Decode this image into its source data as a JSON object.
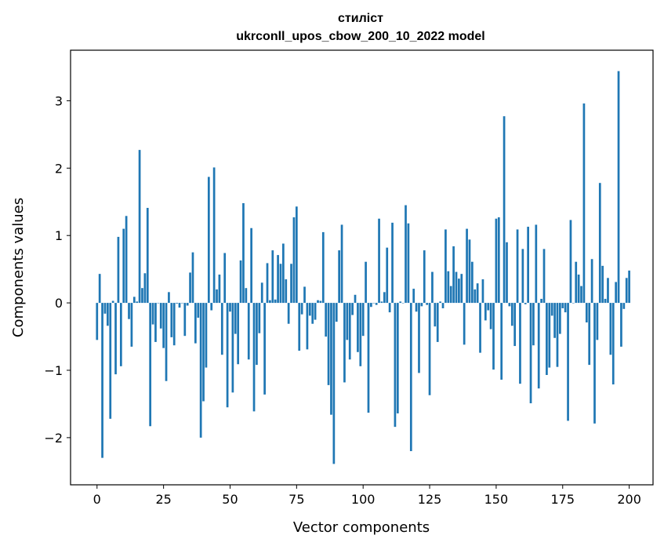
{
  "chart_data": {
    "type": "bar",
    "title_line1": "стиліст",
    "title_line2": "ukrconll_upos_cbow_200_10_2022 model",
    "xlabel": "Vector components",
    "ylabel": "Components values",
    "xlim": [
      -9.95,
      208.95
    ],
    "ylim": [
      -2.7,
      3.75
    ],
    "xticks": [
      0,
      25,
      50,
      75,
      100,
      125,
      150,
      175,
      200
    ],
    "xtick_labels": [
      "0",
      "25",
      "50",
      "75",
      "100",
      "125",
      "150",
      "175",
      "200"
    ],
    "yticks": [
      -2,
      -1,
      0,
      1,
      2,
      3
    ],
    "ytick_labels": [
      "−2",
      "−1",
      "0",
      "1",
      "2",
      "3"
    ],
    "grid": false,
    "bar_color": "#1f77b4",
    "values": [
      -0.55,
      0.43,
      -2.3,
      -0.16,
      -0.34,
      -1.72,
      0.03,
      -1.06,
      0.98,
      -0.94,
      1.1,
      1.29,
      -0.24,
      -0.65,
      0.09,
      0.02,
      2.27,
      0.22,
      0.44,
      1.41,
      -1.83,
      -0.32,
      -0.58,
      0.0,
      -0.38,
      -0.67,
      -1.16,
      0.16,
      -0.51,
      -0.63,
      -0.01,
      -0.07,
      0.0,
      -0.49,
      -0.04,
      0.45,
      0.75,
      -0.6,
      -0.22,
      -2.0,
      -1.46,
      -0.96,
      1.87,
      -0.11,
      2.01,
      0.2,
      0.42,
      -0.77,
      0.74,
      -1.55,
      -0.13,
      -1.33,
      -0.46,
      -0.91,
      0.63,
      1.48,
      0.22,
      -0.84,
      1.11,
      -1.61,
      -0.92,
      -0.45,
      0.3,
      -1.36,
      0.59,
      0.04,
      0.78,
      0.05,
      0.71,
      0.58,
      0.88,
      0.35,
      -0.31,
      0.58,
      1.27,
      1.43,
      -0.71,
      -0.17,
      0.24,
      -0.69,
      -0.19,
      -0.31,
      -0.25,
      0.04,
      0.03,
      1.05,
      -0.5,
      -1.22,
      -1.66,
      -2.39,
      -0.28,
      0.78,
      1.16,
      -1.18,
      -0.55,
      -0.84,
      -0.18,
      0.12,
      -0.73,
      -0.94,
      -0.49,
      0.61,
      -1.63,
      -0.06,
      0.0,
      -0.03,
      1.25,
      0.02,
      0.16,
      0.82,
      -0.14,
      1.19,
      -1.84,
      -1.64,
      0.02,
      0.0,
      1.45,
      1.18,
      -2.2,
      0.21,
      -0.13,
      -1.04,
      -0.05,
      0.78,
      -0.03,
      -1.37,
      0.46,
      -0.35,
      -0.58,
      0.02,
      -0.08,
      1.09,
      0.47,
      0.25,
      0.84,
      0.46,
      0.36,
      0.43,
      -0.62,
      1.1,
      0.94,
      0.61,
      0.2,
      0.29,
      -0.74,
      0.35,
      -0.26,
      -0.11,
      -0.39,
      -0.99,
      1.25,
      1.27,
      -1.14,
      2.77,
      0.9,
      -0.05,
      -0.34,
      -0.64,
      1.09,
      -1.2,
      0.8,
      -0.02,
      1.13,
      -1.49,
      -0.63,
      1.16,
      -1.27,
      0.06,
      0.8,
      -1.07,
      -0.96,
      -0.19,
      -0.52,
      -0.95,
      -0.46,
      -0.08,
      -0.14,
      -1.75,
      1.23,
      0.0,
      0.61,
      0.42,
      0.25,
      2.96,
      -0.29,
      -0.92,
      0.65,
      -1.79,
      -0.55,
      1.78,
      0.55,
      0.06,
      0.37,
      -0.77,
      -1.21,
      0.31,
      3.44,
      -0.65,
      -0.09,
      0.37,
      0.48
    ]
  }
}
